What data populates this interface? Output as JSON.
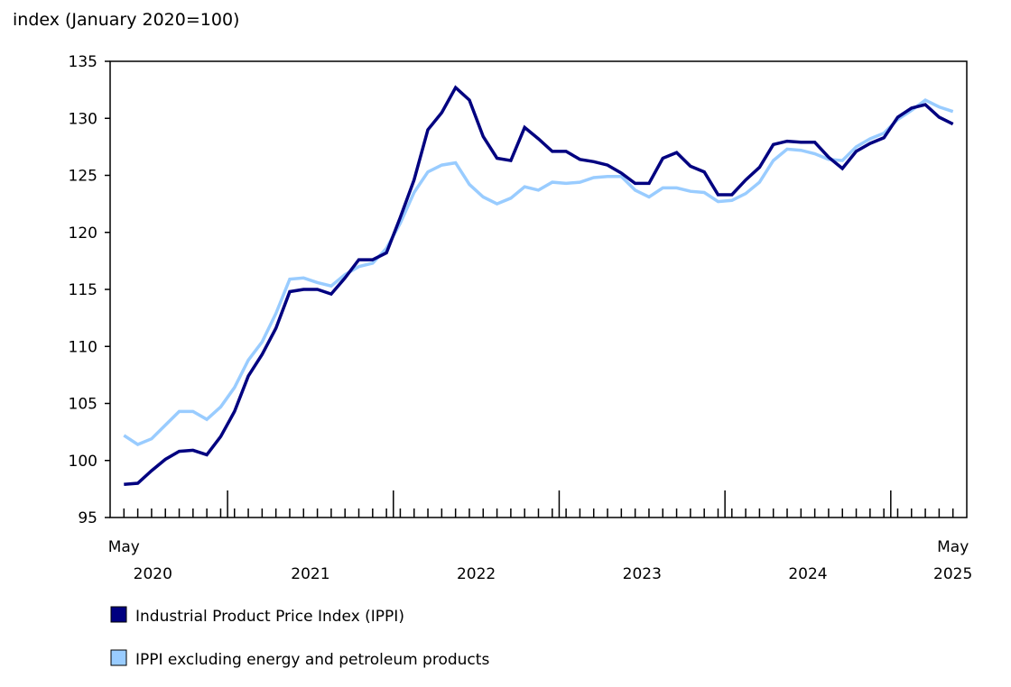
{
  "chart_data": {
    "type": "line",
    "ylabel": "index (January 2020=100)",
    "ylim": [
      95,
      135
    ],
    "yticks": [
      95,
      100,
      105,
      110,
      115,
      120,
      125,
      130,
      135
    ],
    "x_start": "2020-05",
    "x_end": "2025-05",
    "x_labels": [
      {
        "month": "May",
        "year": "2020"
      },
      {
        "year": "2021"
      },
      {
        "year": "2022"
      },
      {
        "year": "2023"
      },
      {
        "year": "2024"
      },
      {
        "month": "May",
        "year": "2025"
      }
    ],
    "grid": false,
    "legend_position": "bottom-left",
    "series": [
      {
        "name": "Industrial Product Price Index (IPPI)",
        "color": "#000080",
        "values": [
          97.9,
          98.0,
          99.1,
          100.1,
          100.8,
          100.9,
          100.5,
          102.1,
          104.3,
          107.4,
          109.3,
          111.6,
          114.8,
          115.0,
          115.0,
          114.6,
          116.0,
          117.6,
          117.6,
          118.2,
          121.3,
          124.6,
          129.0,
          130.5,
          132.7,
          131.6,
          128.4,
          126.5,
          126.3,
          129.2,
          128.2,
          127.1,
          127.1,
          126.4,
          126.2,
          125.9,
          125.2,
          124.3,
          124.3,
          126.5,
          127.0,
          125.8,
          125.3,
          123.3,
          123.3,
          124.6,
          125.7,
          127.7,
          128.0,
          127.9,
          127.9,
          126.6,
          125.6,
          127.1,
          127.8,
          128.3,
          130.1,
          130.9,
          131.2,
          130.1,
          129.5
        ]
      },
      {
        "name": "IPPI excluding energy and petroleum products",
        "color": "#99CCFF",
        "values": [
          102.2,
          101.4,
          101.9,
          103.1,
          104.3,
          104.3,
          103.6,
          104.7,
          106.4,
          108.8,
          110.4,
          112.9,
          115.9,
          116.0,
          115.6,
          115.3,
          116.3,
          117.0,
          117.3,
          118.6,
          120.8,
          123.5,
          125.3,
          125.9,
          126.1,
          124.2,
          123.1,
          122.5,
          123.0,
          124.0,
          123.7,
          124.4,
          124.3,
          124.4,
          124.8,
          124.9,
          124.9,
          123.7,
          123.1,
          123.9,
          123.9,
          123.6,
          123.5,
          122.7,
          122.8,
          123.4,
          124.4,
          126.3,
          127.3,
          127.2,
          126.9,
          126.4,
          126.3,
          127.5,
          128.2,
          128.7,
          129.9,
          130.7,
          131.6,
          131.0,
          130.6
        ]
      }
    ]
  }
}
